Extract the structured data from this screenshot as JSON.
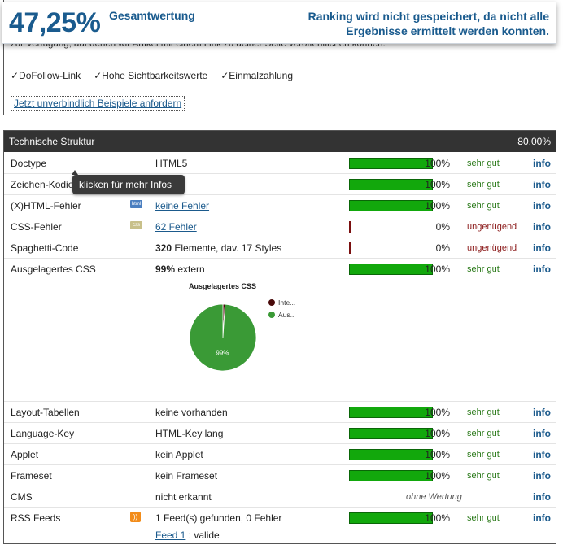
{
  "score": {
    "value": "47,25%",
    "label": "Gesamtwertung",
    "ranking_note": "Ranking wird nicht gespeichert, da nicht alle Ergebnisse ermittelt werden konnten."
  },
  "promo": {
    "cut_text": "zur Verfügung, auf denen wir Artikel mit einem Link zu deiner Seite veröffentlichen können.",
    "features": [
      "✓DoFollow-Link",
      "✓Hohe Sichtbarkeitswerte",
      "✓Einmalzahlung"
    ],
    "request_link": "Jetzt unverbindlich Beispiele anfordern"
  },
  "structure": {
    "title": "Technische Struktur",
    "score": "80,00%",
    "tooltip": "klicken für mehr Infos",
    "info_label": "info",
    "rows": [
      {
        "name": "Doctype",
        "value": "HTML5",
        "pct": "100%",
        "fill": 1.0,
        "rating": "sehr gut"
      },
      {
        "name": "Zeichen-Kodierung",
        "value": "",
        "pct": "100%",
        "fill": 1.0,
        "rating": "sehr gut"
      },
      {
        "name": "(X)HTML-Fehler",
        "badge": "html",
        "value": "keine Fehler",
        "pct": "100%",
        "fill": 1.0,
        "rating": "sehr gut"
      },
      {
        "name": "CSS-Fehler",
        "badge": "css",
        "value": "62 Fehler",
        "pct": "0%",
        "fill": 0.0,
        "rating": "ungenügend"
      },
      {
        "name": "Spaghetti-Code",
        "value_bold": "320",
        "value": " Elemente, dav. 17 Styles",
        "pct": "0%",
        "fill": 0.0,
        "rating": "ungenügend"
      },
      {
        "name": "Ausgelagertes CSS",
        "value_bold": "99%",
        "value": " extern",
        "pct": "100%",
        "fill": 1.0,
        "rating": "sehr gut"
      },
      {
        "name": "Layout-Tabellen",
        "value": "keine vorhanden",
        "pct": "100%",
        "fill": 1.0,
        "rating": "sehr gut"
      },
      {
        "name": "Language-Key",
        "value": "HTML-Key lang",
        "pct": "100%",
        "fill": 1.0,
        "rating": "sehr gut"
      },
      {
        "name": "Applet",
        "value": "kein Applet",
        "pct": "100%",
        "fill": 1.0,
        "rating": "sehr gut"
      },
      {
        "name": "Frameset",
        "value": "kein Frameset",
        "pct": "100%",
        "fill": 1.0,
        "rating": "sehr gut"
      },
      {
        "name": "CMS",
        "value": "nicht erkannt",
        "nowertung": "ohne Wertung"
      },
      {
        "name": "RSS Feeds",
        "badge": "rss",
        "value": "1 Feed(s) gefunden, 0 Fehler",
        "feed_link": "Feed 1",
        "feed_status": " : valide",
        "pct": "100%",
        "fill": 1.0,
        "rating": "sehr gut"
      }
    ]
  },
  "chart_data": {
    "type": "pie",
    "title": "Ausgelagertes CSS",
    "labels": [
      "Inte...",
      "Aus..."
    ],
    "values": [
      1,
      99
    ],
    "slice_labels": [
      "",
      "99%"
    ],
    "colors": [
      "#4a0a0a",
      "#3a9a36"
    ]
  }
}
